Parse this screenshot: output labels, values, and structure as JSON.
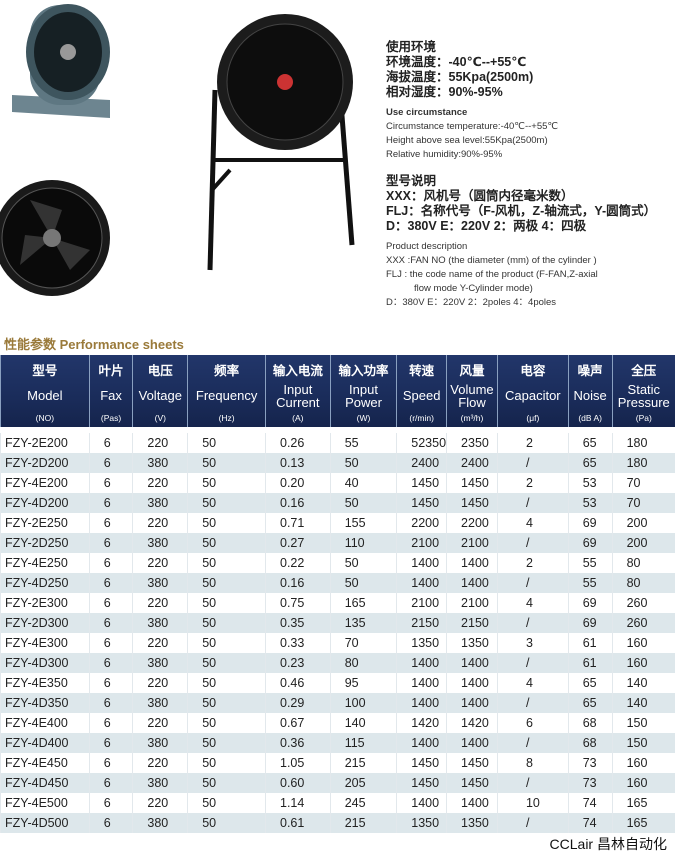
{
  "spec_cn": {
    "title": "使用环境",
    "temp": "环境温度：-40℃--+55℃",
    "alt": "海拔温度：55Kpa(2500m)",
    "hum": "相对湿度：90%-95%"
  },
  "spec_en": {
    "title": "Use circumstance",
    "temp": "Circumstance temperature:-40℃--+55℃",
    "alt": "Height above sea level:55Kpa(2500m)",
    "hum": "Relative humidity:90%-95%"
  },
  "model_cn": {
    "title": "型号说明",
    "xxx": "XXX：风机号（圆筒内径毫米数）",
    "flj": "FLJ：名称代号（F-风机，Z-轴流式，Y-圆筒式）",
    "d": "D：380V  E：220V  2：两极  4：四极"
  },
  "model_en": {
    "title": "Product description",
    "xxx": "XXX :FAN NO  (the diameter (mm) of the cylinder )",
    "flj": "FLJ : the code name of the product (F-FAN,Z-axial",
    "flj2": "flow mode Y-Cylinder mode)",
    "d": "D：380V  E：220V  2：2poles  4：4poles"
  },
  "section_title": "性能参数 Performance sheets",
  "columns": [
    {
      "cn": "型号",
      "en": "Model",
      "unit": "(NO)"
    },
    {
      "cn": "叶片",
      "en": "Fax",
      "unit": "(Pas)"
    },
    {
      "cn": "电压",
      "en": "Voltage",
      "unit": "(V)"
    },
    {
      "cn": "频率",
      "en": "Frequency",
      "unit": "(Hz)"
    },
    {
      "cn": "输入电流",
      "en": "Input Current",
      "unit": "(A)"
    },
    {
      "cn": "输入功率",
      "en": "Input Power",
      "unit": "(W)"
    },
    {
      "cn": "转速",
      "en": "Speed",
      "unit": "(r/min)"
    },
    {
      "cn": "风量",
      "en": "Volume Flow",
      "unit": "(m³/h)"
    },
    {
      "cn": "电容",
      "en": "Capacitor",
      "unit": "(μf)"
    },
    {
      "cn": "噪声",
      "en": "Noise",
      "unit": "(dB A)"
    },
    {
      "cn": "全压",
      "en": "Static Pressure",
      "unit": "(Pa)"
    }
  ],
  "rows": [
    [
      "FZY-2E200",
      "6",
      "220",
      "50",
      "0.26",
      "55",
      "52350",
      "2350",
      "2",
      "65",
      "180"
    ],
    [
      "FZY-2D200",
      "6",
      "380",
      "50",
      "0.13",
      "50",
      "2400",
      "2400",
      "/",
      "65",
      "180"
    ],
    [
      "FZY-4E200",
      "6",
      "220",
      "50",
      "0.20",
      "40",
      "1450",
      "1450",
      "2",
      "53",
      "70"
    ],
    [
      "FZY-4D200",
      "6",
      "380",
      "50",
      "0.16",
      "50",
      "1450",
      "1450",
      "/",
      "53",
      "70"
    ],
    [
      "FZY-2E250",
      "6",
      "220",
      "50",
      "0.71",
      "155",
      "2200",
      "2200",
      "4",
      "69",
      "200"
    ],
    [
      "FZY-2D250",
      "6",
      "380",
      "50",
      "0.27",
      "110",
      "2100",
      "2100",
      "/",
      "69",
      "200"
    ],
    [
      "FZY-4E250",
      "6",
      "220",
      "50",
      "0.22",
      "50",
      "1400",
      "1400",
      "2",
      "55",
      "80"
    ],
    [
      "FZY-4D250",
      "6",
      "380",
      "50",
      "0.16",
      "50",
      "1400",
      "1400",
      "/",
      "55",
      "80"
    ],
    [
      "FZY-2E300",
      "6",
      "220",
      "50",
      "0.75",
      "165",
      "2100",
      "2100",
      "4",
      "69",
      "260"
    ],
    [
      "FZY-2D300",
      "6",
      "380",
      "50",
      "0.35",
      "135",
      "2150",
      "2150",
      "/",
      "69",
      "260"
    ],
    [
      "FZY-4E300",
      "6",
      "220",
      "50",
      "0.33",
      "70",
      "1350",
      "1350",
      "3",
      "61",
      "160"
    ],
    [
      "FZY-4D300",
      "6",
      "380",
      "50",
      "0.23",
      "80",
      "1400",
      "1400",
      "/",
      "61",
      "160"
    ],
    [
      "FZY-4E350",
      "6",
      "220",
      "50",
      "0.46",
      "95",
      "1400",
      "1400",
      "4",
      "65",
      "140"
    ],
    [
      "FZY-4D350",
      "6",
      "380",
      "50",
      "0.29",
      "100",
      "1400",
      "1400",
      "/",
      "65",
      "140"
    ],
    [
      "FZY-4E400",
      "6",
      "220",
      "50",
      "0.67",
      "140",
      "1420",
      "1420",
      "6",
      "68",
      "150"
    ],
    [
      "FZY-4D400",
      "6",
      "380",
      "50",
      "0.36",
      "115",
      "1400",
      "1400",
      "/",
      "68",
      "150"
    ],
    [
      "FZY-4E450",
      "6",
      "220",
      "50",
      "1.05",
      "215",
      "1450",
      "1450",
      "8",
      "73",
      "160"
    ],
    [
      "FZY-4D450",
      "6",
      "380",
      "50",
      "0.60",
      "205",
      "1450",
      "1450",
      "/",
      "73",
      "160"
    ],
    [
      "FZY-4E500",
      "6",
      "220",
      "50",
      "1.14",
      "245",
      "1400",
      "1400",
      "10",
      "74",
      "165"
    ],
    [
      "FZY-4D500",
      "6",
      "380",
      "50",
      "0.61",
      "215",
      "1350",
      "1350",
      "/",
      "74",
      "165"
    ]
  ],
  "watermark_top": "CCLAIR",
  "watermark_bottom": "昌林自动化",
  "brand": "CCLair 昌林自动化"
}
